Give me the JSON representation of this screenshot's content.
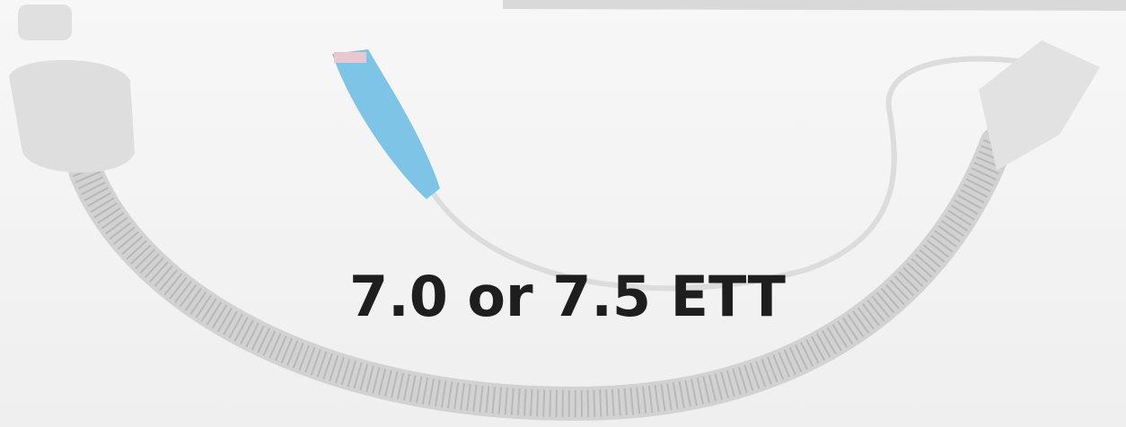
{
  "caption": "7.0 or 7.5 ETT"
}
